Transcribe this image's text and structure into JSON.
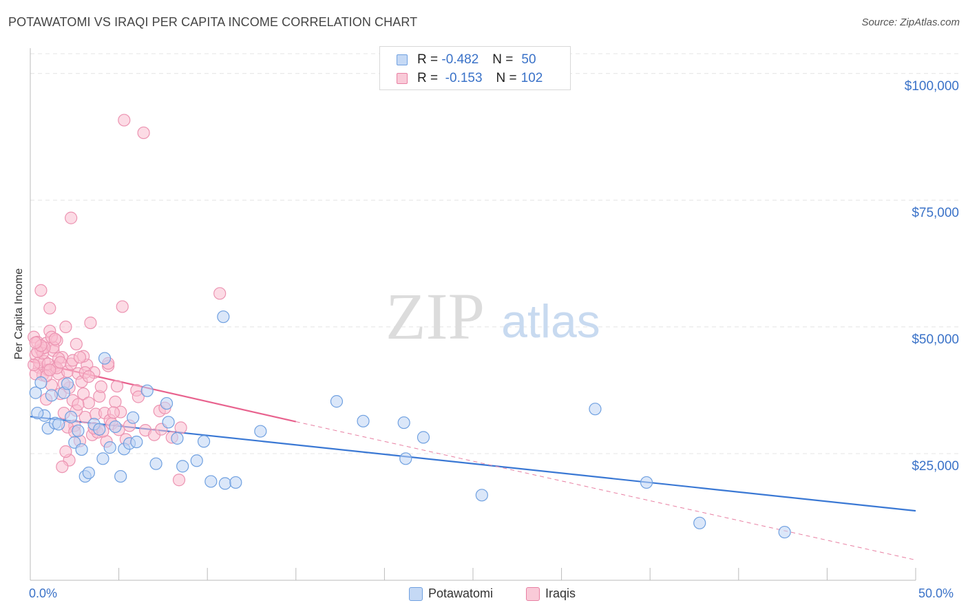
{
  "title": "POTAWATOMI VS IRAQI PER CAPITA INCOME CORRELATION CHART",
  "source": "Source: ZipAtlas.com",
  "watermark": {
    "zip": "ZIP",
    "atlas": "atlas"
  },
  "legend": {
    "rows": [
      {
        "r_label": "R =",
        "r_value": "-0.482",
        "n_label": "N =",
        "n_value": "50",
        "color": "#6fa0e0",
        "fill": "#c5d9f5"
      },
      {
        "r_label": "R =",
        "r_value": "-0.153",
        "n_label": "N =",
        "n_value": "102",
        "color": "#e87fa2",
        "fill": "#f9cad8"
      }
    ]
  },
  "bottom_legend": [
    {
      "label": "Potawatomi",
      "color": "#6fa0e0",
      "fill": "#c5d9f5"
    },
    {
      "label": "Iraqis",
      "color": "#e87fa2",
      "fill": "#f9cad8"
    }
  ],
  "chart_data": {
    "type": "scatter",
    "title": "POTAWATOMI VS IRAQI PER CAPITA INCOME CORRELATION CHART",
    "xlabel": "",
    "ylabel": "Per Capita Income",
    "xlim": [
      0,
      50
    ],
    "ylim": [
      0,
      105000
    ],
    "x_tick_labels": [
      "0.0%",
      "50.0%"
    ],
    "y_ticks": [
      25000,
      50000,
      75000,
      100000
    ],
    "y_tick_labels": [
      "$25,000",
      "$50,000",
      "$75,000",
      "$100,000"
    ],
    "grid": true,
    "legend_position": "top-center",
    "series": [
      {
        "name": "Potawatomi",
        "color": "#3a78d4",
        "trend": {
          "x": [
            0,
            50
          ],
          "y": [
            32300,
            13700
          ]
        },
        "points": [
          [
            0.3,
            37000
          ],
          [
            0.6,
            39000
          ],
          [
            0.8,
            32500
          ],
          [
            1.0,
            30000
          ],
          [
            1.2,
            36500
          ],
          [
            1.4,
            31000
          ],
          [
            1.6,
            30800
          ],
          [
            1.9,
            37000
          ],
          [
            2.1,
            38800
          ],
          [
            2.3,
            32200
          ],
          [
            2.5,
            27200
          ],
          [
            2.7,
            29500
          ],
          [
            2.9,
            25800
          ],
          [
            3.1,
            20500
          ],
          [
            3.3,
            21200
          ],
          [
            3.6,
            30800
          ],
          [
            3.9,
            29800
          ],
          [
            4.1,
            24000
          ],
          [
            4.2,
            43800
          ],
          [
            4.5,
            26200
          ],
          [
            4.8,
            30300
          ],
          [
            5.1,
            20500
          ],
          [
            5.3,
            25900
          ],
          [
            5.6,
            27000
          ],
          [
            5.8,
            32100
          ],
          [
            6.0,
            27300
          ],
          [
            6.6,
            37400
          ],
          [
            7.1,
            23000
          ],
          [
            7.8,
            31200
          ],
          [
            7.7,
            34900
          ],
          [
            8.3,
            28000
          ],
          [
            8.6,
            22500
          ],
          [
            9.4,
            23600
          ],
          [
            9.8,
            27400
          ],
          [
            10.2,
            19500
          ],
          [
            11.0,
            19100
          ],
          [
            11.6,
            19300
          ],
          [
            10.9,
            52000
          ],
          [
            13.0,
            29400
          ],
          [
            17.3,
            35300
          ],
          [
            18.8,
            31400
          ],
          [
            21.1,
            31100
          ],
          [
            21.2,
            24000
          ],
          [
            22.2,
            28200
          ],
          [
            25.5,
            16800
          ],
          [
            31.9,
            33800
          ],
          [
            34.8,
            19300
          ],
          [
            37.8,
            11300
          ],
          [
            42.6,
            9500
          ],
          [
            0.4,
            33000
          ]
        ]
      },
      {
        "name": "Iraqis",
        "color": "#e8628e",
        "trend": {
          "x": [
            0,
            15
          ],
          "y": [
            43200,
            31300
          ]
        },
        "trend_dashed": {
          "x": [
            15,
            50
          ],
          "y": [
            31300,
            4000
          ]
        },
        "points": [
          [
            0.2,
            48000
          ],
          [
            0.3,
            44500
          ],
          [
            0.4,
            47000
          ],
          [
            0.5,
            42000
          ],
          [
            0.6,
            45500
          ],
          [
            0.7,
            40500
          ],
          [
            0.8,
            43200
          ],
          [
            0.9,
            46800
          ],
          [
            1.0,
            41500
          ],
          [
            1.1,
            49200
          ],
          [
            1.2,
            38500
          ],
          [
            1.3,
            45300
          ],
          [
            1.4,
            42200
          ],
          [
            1.5,
            47300
          ],
          [
            1.6,
            40700
          ],
          [
            1.7,
            36800
          ],
          [
            1.8,
            44000
          ],
          [
            1.9,
            33000
          ],
          [
            2.0,
            50000
          ],
          [
            2.1,
            41200
          ],
          [
            2.2,
            38000
          ],
          [
            2.3,
            42700
          ],
          [
            2.4,
            35500
          ],
          [
            2.5,
            30500
          ],
          [
            2.6,
            46600
          ],
          [
            2.7,
            40800
          ],
          [
            2.8,
            27500
          ],
          [
            3.0,
            36800
          ],
          [
            3.1,
            32200
          ],
          [
            3.2,
            42500
          ],
          [
            3.3,
            35000
          ],
          [
            3.4,
            50800
          ],
          [
            3.5,
            28700
          ],
          [
            3.6,
            41000
          ],
          [
            3.7,
            32800
          ],
          [
            3.8,
            29200
          ],
          [
            3.9,
            36300
          ],
          [
            4.0,
            38200
          ],
          [
            4.2,
            33000
          ],
          [
            4.3,
            27400
          ],
          [
            4.4,
            42300
          ],
          [
            4.5,
            31600
          ],
          [
            4.6,
            30900
          ],
          [
            4.8,
            35200
          ],
          [
            4.9,
            38300
          ],
          [
            5.0,
            29700
          ],
          [
            5.1,
            33200
          ],
          [
            5.2,
            54000
          ],
          [
            5.4,
            27800
          ],
          [
            5.6,
            30500
          ],
          [
            5.3,
            90800
          ],
          [
            6.4,
            88300
          ],
          [
            6.0,
            37500
          ],
          [
            6.5,
            29600
          ],
          [
            7.0,
            28700
          ],
          [
            7.3,
            33400
          ],
          [
            7.6,
            34000
          ],
          [
            8.0,
            28200
          ],
          [
            8.5,
            30100
          ],
          [
            8.4,
            19800
          ],
          [
            10.7,
            56600
          ],
          [
            2.3,
            71500
          ],
          [
            0.6,
            57200
          ],
          [
            1.1,
            53700
          ],
          [
            1.6,
            43800
          ],
          [
            2.2,
            23700
          ],
          [
            2.0,
            25400
          ],
          [
            1.8,
            22400
          ],
          [
            2.9,
            39200
          ],
          [
            3.1,
            41000
          ],
          [
            0.9,
            40300
          ],
          [
            1.3,
            46000
          ],
          [
            0.5,
            43000
          ],
          [
            0.7,
            44800
          ],
          [
            1.0,
            42700
          ],
          [
            1.5,
            41900
          ],
          [
            2.4,
            43400
          ],
          [
            1.2,
            48000
          ],
          [
            0.3,
            40700
          ],
          [
            0.8,
            45900
          ],
          [
            1.9,
            38800
          ],
          [
            2.6,
            33500
          ],
          [
            3.3,
            40200
          ],
          [
            0.4,
            45100
          ],
          [
            1.7,
            43000
          ],
          [
            2.1,
            30200
          ],
          [
            2.7,
            34700
          ],
          [
            4.7,
            33100
          ],
          [
            3.6,
            30000
          ],
          [
            4.1,
            29400
          ],
          [
            0.2,
            42500
          ],
          [
            1.4,
            47600
          ],
          [
            0.9,
            35700
          ],
          [
            2.5,
            29300
          ],
          [
            3.0,
            44200
          ],
          [
            6.1,
            36200
          ],
          [
            0.6,
            46300
          ],
          [
            1.1,
            41500
          ],
          [
            2.8,
            44000
          ],
          [
            0.3,
            46900
          ],
          [
            4.4,
            42800
          ],
          [
            7.4,
            29800
          ]
        ]
      }
    ]
  }
}
